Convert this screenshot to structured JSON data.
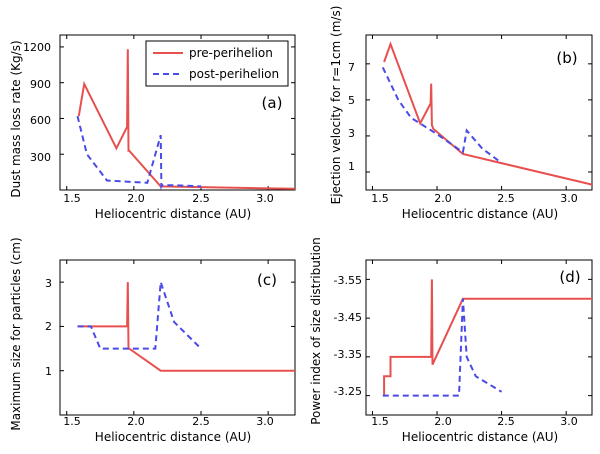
{
  "colors": {
    "pre": "#e8504f",
    "post": "#4a4ae8",
    "axes": "#000000",
    "background": "#ffffff"
  },
  "legend": {
    "pre_label": "pre-perihelion",
    "post_label": "post-perihelion",
    "placement": "upper-right of panel (a)"
  },
  "chart_data": [
    {
      "type": "line",
      "panel": "a",
      "panel_label": "(a)",
      "xlabel": "Heliocentric distance (AU)",
      "ylabel": "Dust mass loss rate (Kg/s)",
      "xlim": [
        1.45,
        3.2
      ],
      "ylim": [
        0,
        1300
      ],
      "xticks": [
        1.5,
        2.0,
        2.5,
        3.0
      ],
      "xtick_labels": [
        "1.5",
        "2.0",
        "2.5",
        "3.0"
      ],
      "yticks": [
        300,
        600,
        900,
        1200
      ],
      "ytick_labels": [
        "300",
        "600",
        "900",
        "1200"
      ],
      "y_inverted": false,
      "grid": false,
      "series": [
        {
          "name": "pre-perihelion",
          "style": "solid",
          "color": "#e8504f",
          "x": [
            1.59,
            1.63,
            1.87,
            1.95,
            1.955,
            1.96,
            1.965,
            2.2,
            3.2
          ],
          "y": [
            620,
            890,
            350,
            530,
            1180,
            330,
            330,
            30,
            10
          ]
        },
        {
          "name": "post-perihelion",
          "style": "dashed",
          "color": "#4a4ae8",
          "x": [
            1.58,
            1.65,
            1.8,
            2.1,
            2.2,
            2.205,
            2.21,
            2.3,
            2.5
          ],
          "y": [
            620,
            300,
            80,
            60,
            460,
            30,
            40,
            40,
            30
          ]
        }
      ]
    },
    {
      "type": "line",
      "panel": "b",
      "panel_label": "(b)",
      "xlabel": "Heliocentric distance (AU)",
      "ylabel": "Ejection velocity for r=1cm (m/s)",
      "xlim": [
        1.45,
        3.2
      ],
      "ylim": [
        0,
        8.6
      ],
      "xticks": [
        1.5,
        2.0,
        2.5,
        3.0
      ],
      "xtick_labels": [
        "1.5",
        "2.0",
        "2.5",
        "3.0"
      ],
      "yticks": [
        1,
        3,
        5,
        7
      ],
      "ytick_labels": [
        "1",
        "3",
        "5",
        "7"
      ],
      "y_inverted": false,
      "grid": false,
      "series": [
        {
          "name": "pre-perihelion",
          "style": "solid",
          "color": "#e8504f",
          "x": [
            1.59,
            1.64,
            1.87,
            1.95,
            1.955,
            1.96,
            1.97,
            2.2,
            3.2
          ],
          "y": [
            7.1,
            8.1,
            3.7,
            4.8,
            5.9,
            3.6,
            3.4,
            2.0,
            0.3
          ]
        },
        {
          "name": "post-perihelion",
          "style": "dashed",
          "color": "#4a4ae8",
          "x": [
            1.58,
            1.7,
            1.8,
            2.0,
            2.2,
            2.23,
            2.35,
            2.5
          ],
          "y": [
            6.8,
            5.0,
            4.0,
            3.1,
            2.1,
            3.3,
            2.3,
            1.5
          ]
        }
      ]
    },
    {
      "type": "line",
      "panel": "c",
      "panel_label": "(c)",
      "xlabel": "Heliocentric distance (AU)",
      "ylabel": "Maximum size for particles (cm)",
      "xlim": [
        1.45,
        3.2
      ],
      "ylim": [
        0,
        3.5
      ],
      "xticks": [
        1.5,
        2.0,
        2.5,
        3.0
      ],
      "xtick_labels": [
        "1.5",
        "2.0",
        "2.5",
        "3.0"
      ],
      "yticks": [
        1,
        2,
        3
      ],
      "ytick_labels": [
        "1",
        "2",
        "3"
      ],
      "y_inverted": false,
      "grid": false,
      "series": [
        {
          "name": "pre-perihelion",
          "style": "solid",
          "color": "#e8504f",
          "x": [
            1.59,
            1.95,
            1.955,
            1.96,
            1.965,
            2.2,
            3.2
          ],
          "y": [
            2.0,
            2.0,
            3.0,
            1.5,
            1.5,
            1.0,
            1.0
          ]
        },
        {
          "name": "post-perihelion",
          "style": "dashed",
          "color": "#4a4ae8",
          "x": [
            1.58,
            1.68,
            1.75,
            2.16,
            2.2,
            2.3,
            2.5
          ],
          "y": [
            2.0,
            2.0,
            1.5,
            1.5,
            3.0,
            2.1,
            1.5
          ]
        }
      ]
    },
    {
      "type": "line",
      "panel": "d",
      "panel_label": "(d)",
      "xlabel": "Heliocentric distance (AU)",
      "ylabel": "Power index of size distribution",
      "xlim": [
        1.45,
        3.2
      ],
      "ylim": [
        -3.2,
        -3.6
      ],
      "xticks": [
        1.5,
        2.0,
        2.5,
        3.0
      ],
      "xtick_labels": [
        "1.5",
        "2.0",
        "2.5",
        "3.0"
      ],
      "yticks": [
        -3.25,
        -3.35,
        -3.45,
        -3.55
      ],
      "ytick_labels": [
        "-3.25",
        "-3.35",
        "-3.45",
        "-3.55"
      ],
      "y_inverted": true,
      "grid": false,
      "series": [
        {
          "name": "pre-perihelion",
          "style": "solid",
          "color": "#e8504f",
          "x": [
            1.59,
            1.59,
            1.64,
            1.64,
            1.955,
            1.96,
            1.965,
            2.2,
            3.2
          ],
          "y": [
            -3.25,
            -3.3,
            -3.3,
            -3.35,
            -3.35,
            -3.55,
            -3.33,
            -3.5,
            -3.5
          ]
        },
        {
          "name": "post-perihelion",
          "style": "dashed",
          "color": "#4a4ae8",
          "x": [
            1.58,
            2.17,
            2.2,
            2.23,
            2.3,
            2.5
          ],
          "y": [
            -3.25,
            -3.25,
            -3.5,
            -3.35,
            -3.3,
            -3.26
          ]
        }
      ]
    }
  ]
}
